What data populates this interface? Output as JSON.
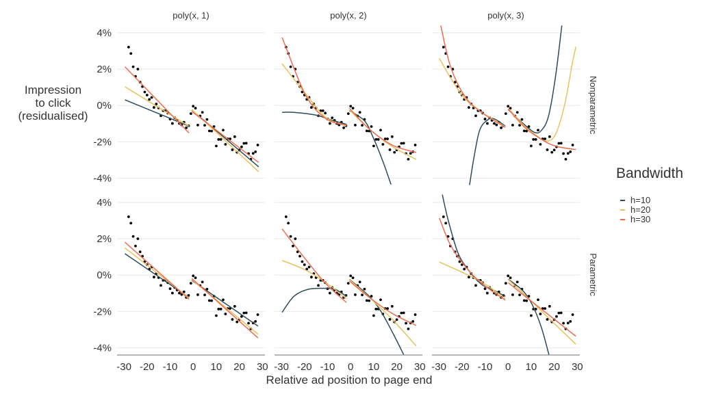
{
  "chart_data": {
    "type": "line",
    "xlabel": "Relative ad position to page end",
    "ylabel": [
      "Impression",
      "to click",
      "(residualised)"
    ],
    "xlim": [
      -33,
      31.1
    ],
    "ylim": [
      -4.4,
      4.45
    ],
    "x_ticks": [
      -30,
      -20,
      -10,
      0,
      10,
      20,
      30
    ],
    "y_ticks": [
      4,
      2,
      0,
      -2,
      -4
    ],
    "y_tick_labels": [
      "4%",
      "2%",
      "0%",
      "-2%",
      "-4%"
    ],
    "grid": true,
    "facet_columns": [
      "poly(x, 1)",
      "poly(x, 2)",
      "poly(x, 3)"
    ],
    "facet_rows": [
      "Nonparametric",
      "Parametric"
    ],
    "legend": {
      "title": "Bandwidth",
      "placement": "right",
      "entries": [
        {
          "label": "h=10",
          "color": "#2d4b5a"
        },
        {
          "label": "h=20",
          "color": "#e9c25e"
        },
        {
          "label": "h=30",
          "color": "#ec6c4f"
        }
      ]
    },
    "points": [
      [
        -28,
        3.21
      ],
      [
        -27,
        2.86
      ],
      [
        -26,
        2.13
      ],
      [
        -25,
        1.6
      ],
      [
        -24,
        2.0
      ],
      [
        -23,
        1.28
      ],
      [
        -22,
        1.04
      ],
      [
        -21,
        0.74
      ],
      [
        -20,
        0.57
      ],
      [
        -19,
        0.33
      ],
      [
        -18,
        0.44
      ],
      [
        -17,
        -0.11
      ],
      [
        -16,
        0.08
      ],
      [
        -15,
        -0.14
      ],
      [
        -14,
        -0.57
      ],
      [
        -13,
        -0.29
      ],
      [
        -12,
        -0.29
      ],
      [
        -11,
        -0.42
      ],
      [
        -10,
        -0.75
      ],
      [
        -9,
        -0.99
      ],
      [
        -8,
        -0.68
      ],
      [
        -7,
        -0.82
      ],
      [
        -6,
        -0.99
      ],
      [
        -5,
        -1.07
      ],
      [
        -4,
        -0.92
      ],
      [
        -3,
        -1.23
      ],
      [
        -2,
        -1.12
      ],
      [
        -1,
        -0.45
      ],
      [
        0,
        -0.04
      ],
      [
        1,
        -0.15
      ],
      [
        2,
        -1.08
      ],
      [
        3,
        -0.58
      ],
      [
        4,
        -0.38
      ],
      [
        5,
        -1.09
      ],
      [
        6,
        -0.77
      ],
      [
        7,
        -1.4
      ],
      [
        8,
        -1.41
      ],
      [
        9,
        -1.16
      ],
      [
        10,
        -2.23
      ],
      [
        11,
        -1.87
      ],
      [
        12,
        -1.87
      ],
      [
        13,
        -1.36
      ],
      [
        14,
        -2.14
      ],
      [
        15,
        -1.84
      ],
      [
        16,
        -1.84
      ],
      [
        17,
        -2.44
      ],
      [
        18,
        -1.72
      ],
      [
        19,
        -2.58
      ],
      [
        20,
        -2.45
      ],
      [
        21,
        -2.28
      ],
      [
        22,
        -2.09
      ],
      [
        23,
        -2.08
      ],
      [
        24,
        -2.65
      ],
      [
        25,
        -2.96
      ],
      [
        26,
        -2.64
      ],
      [
        27,
        -2.55
      ],
      [
        28,
        -2.18
      ]
    ],
    "panels": [
      {
        "row": 0,
        "col": 0,
        "curves": {
          "h=10": {
            "left": [
              [
                -29.6,
                0.31
              ],
              [
                -1.8,
                -1.14
              ]
            ],
            "right": [
              [
                -0.6,
                -0.25
              ],
              [
                28.4,
                -3.38
              ]
            ]
          },
          "h=20": {
            "left": [
              [
                -29.6,
                1.03
              ],
              [
                -1.8,
                -1.14
              ]
            ],
            "right": [
              [
                -0.6,
                -0.23
              ],
              [
                28.4,
                -3.65
              ]
            ]
          },
          "h=30": {
            "left": [
              [
                -29.6,
                2.13
              ],
              [
                -1.8,
                -1.52
              ]
            ],
            "right": [
              [
                -0.6,
                -0.33
              ],
              [
                28.4,
                -3.14
              ]
            ]
          }
        }
      },
      {
        "row": 0,
        "col": 1,
        "curves": {
          "h=10": {
            "left": [
              [
                -29.7,
                -0.38
              ],
              [
                -24.6,
                -0.38
              ],
              [
                -14.7,
                -0.54
              ],
              [
                -9.7,
                -0.75
              ],
              [
                -1.8,
                -1.04
              ]
            ],
            "right": [
              [
                -0.5,
                -0.29
              ],
              [
                6.1,
                -0.86
              ],
              [
                10.1,
                -1.86
              ],
              [
                14.1,
                -3.12
              ],
              [
                17.5,
                -4.35
              ]
            ]
          },
          "h=20": {
            "left": [
              [
                -29.7,
                2.29
              ],
              [
                -19.6,
                0.65
              ],
              [
                -10.7,
                -0.67
              ],
              [
                -1.8,
                -1.13
              ]
            ],
            "right": [
              [
                -0.5,
                -0.25
              ],
              [
                8.1,
                -1.3
              ],
              [
                18,
                -2.26
              ],
              [
                28.4,
                -2.97
              ]
            ]
          },
          "h=30": {
            "left": [
              [
                -29.7,
                3.74
              ],
              [
                -19.6,
                0.59
              ],
              [
                -10.7,
                -0.73
              ],
              [
                -1.8,
                -1.08
              ]
            ],
            "right": [
              [
                -0.5,
                -0.16
              ],
              [
                8.1,
                -1.3
              ],
              [
                18,
                -2.18
              ],
              [
                28.4,
                -2.59
              ]
            ]
          }
        }
      },
      {
        "row": 0,
        "col": 2,
        "curves": {
          "h=10": {
            "left": [
              [
                -16.7,
                -4.38
              ],
              [
                -14.8,
                -2.87
              ],
              [
                -12.3,
                -1.36
              ],
              [
                -8.8,
                -0.79
              ],
              [
                -5.8,
                -0.75
              ],
              [
                -1.2,
                -1.14
              ]
            ],
            "right": [
              [
                0.1,
                -0.23
              ],
              [
                6.4,
                -0.98
              ],
              [
                11.4,
                -1.48
              ],
              [
                14.4,
                -1.38
              ],
              [
                17.5,
                -0.6
              ],
              [
                20.5,
                1.53
              ],
              [
                23.3,
                4.4
              ]
            ]
          },
          "h=20": {
            "left": [
              [
                -29.8,
                2.6
              ],
              [
                -25,
                1.53
              ],
              [
                -18.9,
                0.4
              ],
              [
                -11.8,
                -0.35
              ],
              [
                -1.2,
                -1.17
              ]
            ],
            "right": [
              [
                0.1,
                -0.16
              ],
              [
                7.4,
                -1.17
              ],
              [
                12.4,
                -1.67
              ],
              [
                16.5,
                -1.96
              ],
              [
                20.5,
                -1.61
              ],
              [
                24.5,
                0.03
              ],
              [
                27.6,
                2.16
              ],
              [
                29.4,
                3.23
              ]
            ]
          },
          "h=30": {
            "left": [
              [
                -29.2,
                4.4
              ],
              [
                -25,
                2.16
              ],
              [
                -18.9,
                0.53
              ],
              [
                -11.8,
                -0.35
              ],
              [
                -1.2,
                -1.21
              ]
            ],
            "right": [
              [
                0.1,
                -0.2
              ],
              [
                7.4,
                -1.23
              ],
              [
                14.4,
                -1.86
              ],
              [
                20.5,
                -2.24
              ],
              [
                29.4,
                -2.43
              ]
            ]
          }
        }
      },
      {
        "row": 1,
        "col": 0,
        "curves": {
          "h=10": {
            "left": [
              [
                -29.6,
                1.18
              ],
              [
                -1.8,
                -1.23
              ]
            ],
            "right": [
              [
                -0.6,
                -0.29
              ],
              [
                28.1,
                -2.81
              ]
            ]
          },
          "h=20": {
            "left": [
              [
                -29.6,
                1.5
              ],
              [
                -1.8,
                -1.26
              ]
            ],
            "right": [
              [
                -0.6,
                -0.25
              ],
              [
                28.1,
                -3.25
              ]
            ]
          },
          "h=30": {
            "left": [
              [
                -29.6,
                1.81
              ],
              [
                -1.8,
                -1.33
              ]
            ],
            "right": [
              [
                -0.6,
                -0.19
              ],
              [
                28.1,
                -3.46
              ]
            ]
          }
        }
      },
      {
        "row": 1,
        "col": 1,
        "curves": {
          "h=10": {
            "left": [
              [
                -29.7,
                -2.05
              ],
              [
                -24.6,
                -1.17
              ],
              [
                -18.6,
                -0.79
              ],
              [
                -11.7,
                -0.73
              ],
              [
                -6.7,
                -0.79
              ],
              [
                -1.8,
                -1.17
              ]
            ],
            "right": [
              [
                -0.5,
                -0.23
              ],
              [
                8.1,
                -1.17
              ],
              [
                13.1,
                -1.99
              ],
              [
                18,
                -3.12
              ],
              [
                23,
                -4.38
              ]
            ]
          },
          "h=20": {
            "left": [
              [
                -29.7,
                0.81
              ],
              [
                -19.6,
                0.28
              ],
              [
                -10.7,
                -0.42
              ],
              [
                -1.8,
                -1.3
              ]
            ],
            "right": [
              [
                -0.5,
                -0.25
              ],
              [
                8.1,
                -1.23
              ],
              [
                18,
                -2.43
              ],
              [
                28.4,
                -3.9
              ]
            ]
          },
          "h=30": {
            "left": [
              [
                -29.7,
                2.54
              ],
              [
                -19.6,
                0.88
              ],
              [
                -10.7,
                -0.48
              ],
              [
                -1.8,
                -1.51
              ]
            ],
            "right": [
              [
                -0.5,
                -0.33
              ],
              [
                8.1,
                -1.23
              ],
              [
                18,
                -2.11
              ],
              [
                28.4,
                -2.77
              ]
            ]
          }
        }
      },
      {
        "row": 1,
        "col": 2,
        "curves": {
          "h=10": {
            "left": [
              [
                -28.5,
                4.43
              ],
              [
                -26,
                3.04
              ],
              [
                -21.9,
                1.28
              ],
              [
                -17.9,
                0.4
              ],
              [
                -11.8,
                -0.48
              ],
              [
                -5.8,
                -0.86
              ],
              [
                -1.2,
                -1.17
              ]
            ],
            "right": [
              [
                0.1,
                -0.23
              ],
              [
                6.4,
                -0.86
              ],
              [
                10.4,
                -1.61
              ],
              [
                14.4,
                -2.87
              ],
              [
                17.7,
                -4.38
              ]
            ]
          },
          "h=20": {
            "left": [
              [
                -29.8,
                0.72
              ],
              [
                -20.9,
                0.21
              ],
              [
                -11.8,
                -0.35
              ],
              [
                -1.2,
                -1.3
              ]
            ],
            "right": [
              [
                0.1,
                -0.25
              ],
              [
                7.4,
                -1.11
              ],
              [
                17.5,
                -2.36
              ],
              [
                29.4,
                -3.81
              ]
            ]
          },
          "h=30": {
            "left": [
              [
                -29.8,
                3.14
              ],
              [
                -25,
                1.66
              ],
              [
                -18.9,
                0.53
              ],
              [
                -11.8,
                -0.42
              ],
              [
                -1.2,
                -1.38
              ]
            ],
            "right": [
              [
                0.1,
                -0.42
              ],
              [
                7.4,
                -1.17
              ],
              [
                17.5,
                -2.18
              ],
              [
                29.4,
                -3.37
              ]
            ]
          }
        }
      }
    ]
  }
}
